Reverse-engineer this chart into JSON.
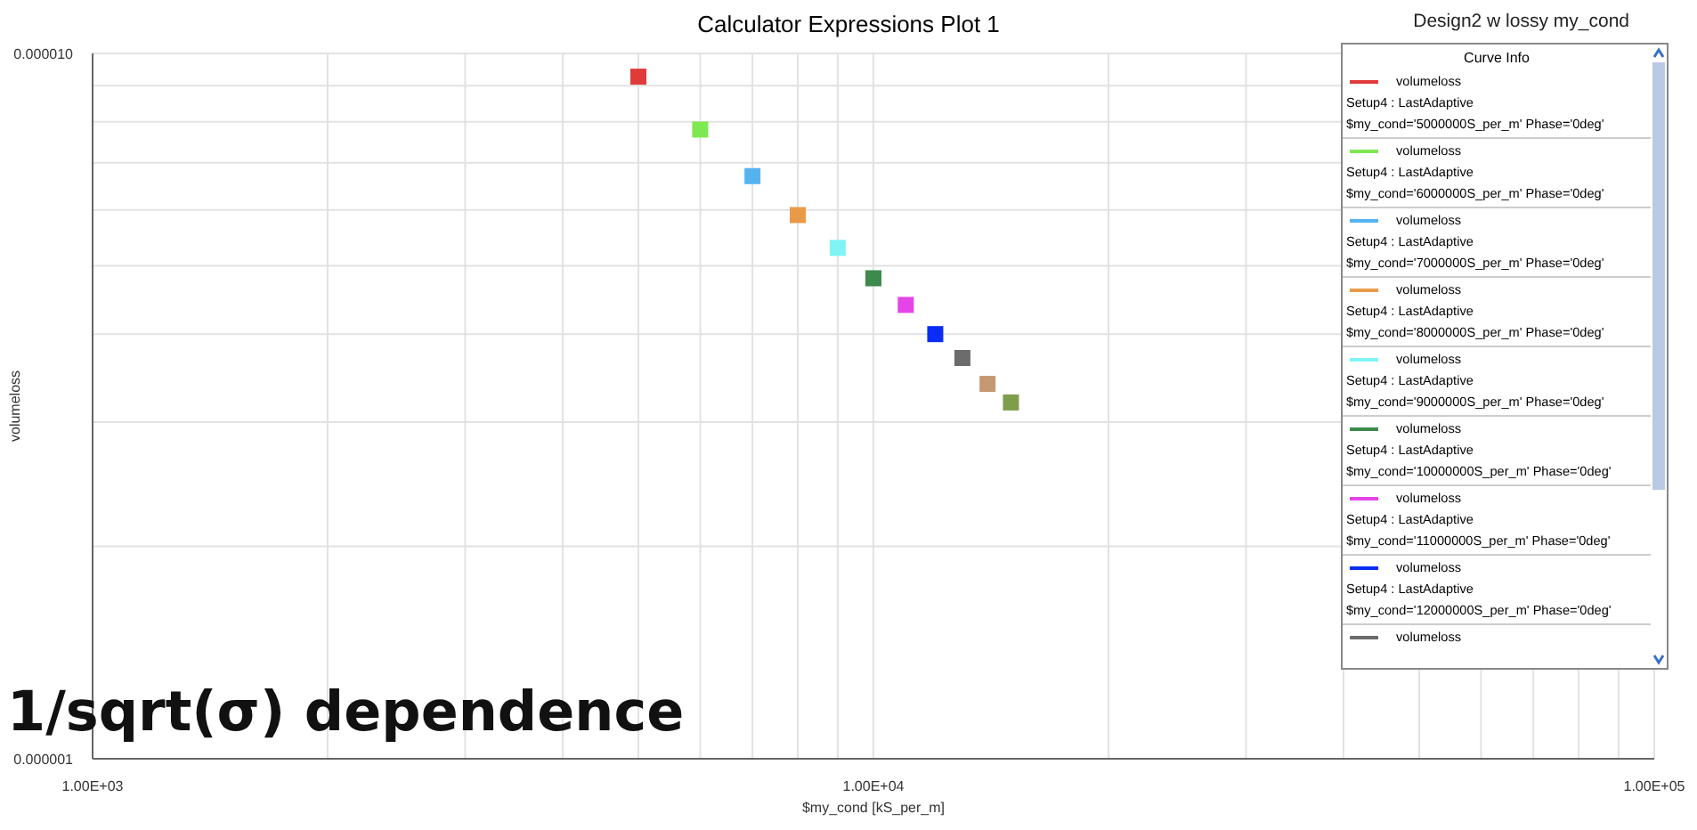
{
  "chart_data": {
    "type": "scatter",
    "title": "Calculator Expressions Plot 1",
    "subtitle": "Design2 w lossy my_cond",
    "xlabel": "$my_cond [kS_per_m]",
    "ylabel": "volumeloss",
    "legend_title": "Curve Info",
    "log": "xy",
    "grid": true,
    "legend": "top right",
    "marker": "square",
    "annotations": [
      "1/sqrt(σ) dependence"
    ],
    "xlim": [
      1000,
      100000
    ],
    "xticks": [
      {
        "value": 1000,
        "label": "1.00E+03"
      },
      {
        "value": 2000,
        "label": null
      },
      {
        "value": 3000,
        "label": null
      },
      {
        "value": 4000,
        "label": null
      },
      {
        "value": 5000,
        "label": null
      },
      {
        "value": 6000,
        "label": null
      },
      {
        "value": 7000,
        "label": null
      },
      {
        "value": 8000,
        "label": null
      },
      {
        "value": 9000,
        "label": null
      },
      {
        "value": 10000,
        "label": "1.00E+04"
      },
      {
        "value": 20000,
        "label": null
      },
      {
        "value": 30000,
        "label": null
      },
      {
        "value": 40000,
        "label": null
      },
      {
        "value": 50000,
        "label": null
      },
      {
        "value": 60000,
        "label": null
      },
      {
        "value": 70000,
        "label": null
      },
      {
        "value": 80000,
        "label": null
      },
      {
        "value": 90000,
        "label": null
      },
      {
        "value": 100000,
        "label": "1.00E+05"
      }
    ],
    "ylim": [
      1e-06,
      1e-05
    ],
    "yticks": [
      {
        "value": 1e-06,
        "label": "0.000001"
      },
      {
        "value": 2e-06,
        "label": null
      },
      {
        "value": 3e-06,
        "label": null
      },
      {
        "value": 4e-06,
        "label": null
      },
      {
        "value": 5e-06,
        "label": null
      },
      {
        "value": 6e-06,
        "label": null
      },
      {
        "value": 7e-06,
        "label": null
      },
      {
        "value": 8e-06,
        "label": null
      },
      {
        "value": 9e-06,
        "label": null
      },
      {
        "value": 1e-05,
        "label": "0.000010"
      }
    ],
    "series": [
      {
        "name": "volumeloss\nSetup4 : LastAdaptive\n$my_cond='5000000S_per_m' Phase='0deg'",
        "color": "#e03a3a",
        "x": [
          5000
        ],
        "values": [
          9.27e-06
        ]
      },
      {
        "name": "volumeloss\nSetup4 : LastAdaptive\n$my_cond='6000000S_per_m' Phase='0deg'",
        "color": "#7ee850",
        "x": [
          6000
        ],
        "values": [
          7.8e-06
        ]
      },
      {
        "name": "volumeloss\nSetup4 : LastAdaptive\n$my_cond='7000000S_per_m' Phase='0deg'",
        "color": "#55b4f0",
        "x": [
          7000
        ],
        "values": [
          6.7e-06
        ]
      },
      {
        "name": "volumeloss\nSetup4 : LastAdaptive\n$my_cond='8000000S_per_m' Phase='0deg'",
        "color": "#e89a48",
        "x": [
          8000
        ],
        "values": [
          5.9e-06
        ]
      },
      {
        "name": "volumeloss\nSetup4 : LastAdaptive\n$my_cond='9000000S_per_m' Phase='0deg'",
        "color": "#80f4f4",
        "x": [
          9000
        ],
        "values": [
          5.3e-06
        ]
      },
      {
        "name": "volumeloss\nSetup4 : LastAdaptive\n$my_cond='10000000S_per_m' Phase='0deg'",
        "color": "#3c8a4c",
        "x": [
          10000
        ],
        "values": [
          4.8e-06
        ]
      },
      {
        "name": "volumeloss\nSetup4 : LastAdaptive\n$my_cond='11000000S_per_m' Phase='0deg'",
        "color": "#e444e8",
        "x": [
          11000
        ],
        "values": [
          4.4e-06
        ]
      },
      {
        "name": "volumeloss\nSetup4 : LastAdaptive\n$my_cond='12000000S_per_m' Phase='0deg'",
        "color": "#0a2cf4",
        "x": [
          12000
        ],
        "values": [
          4e-06
        ]
      },
      {
        "name": "volumeloss",
        "color": "#6c6c6c",
        "x": [
          13000
        ],
        "values": [
          3.7e-06
        ]
      },
      {
        "color": "#c49870",
        "x": [
          14000
        ],
        "values": [
          3.4e-06
        ]
      },
      {
        "color": "#7e9e4c",
        "x": [
          15000
        ],
        "values": [
          3.2e-06
        ]
      }
    ]
  }
}
